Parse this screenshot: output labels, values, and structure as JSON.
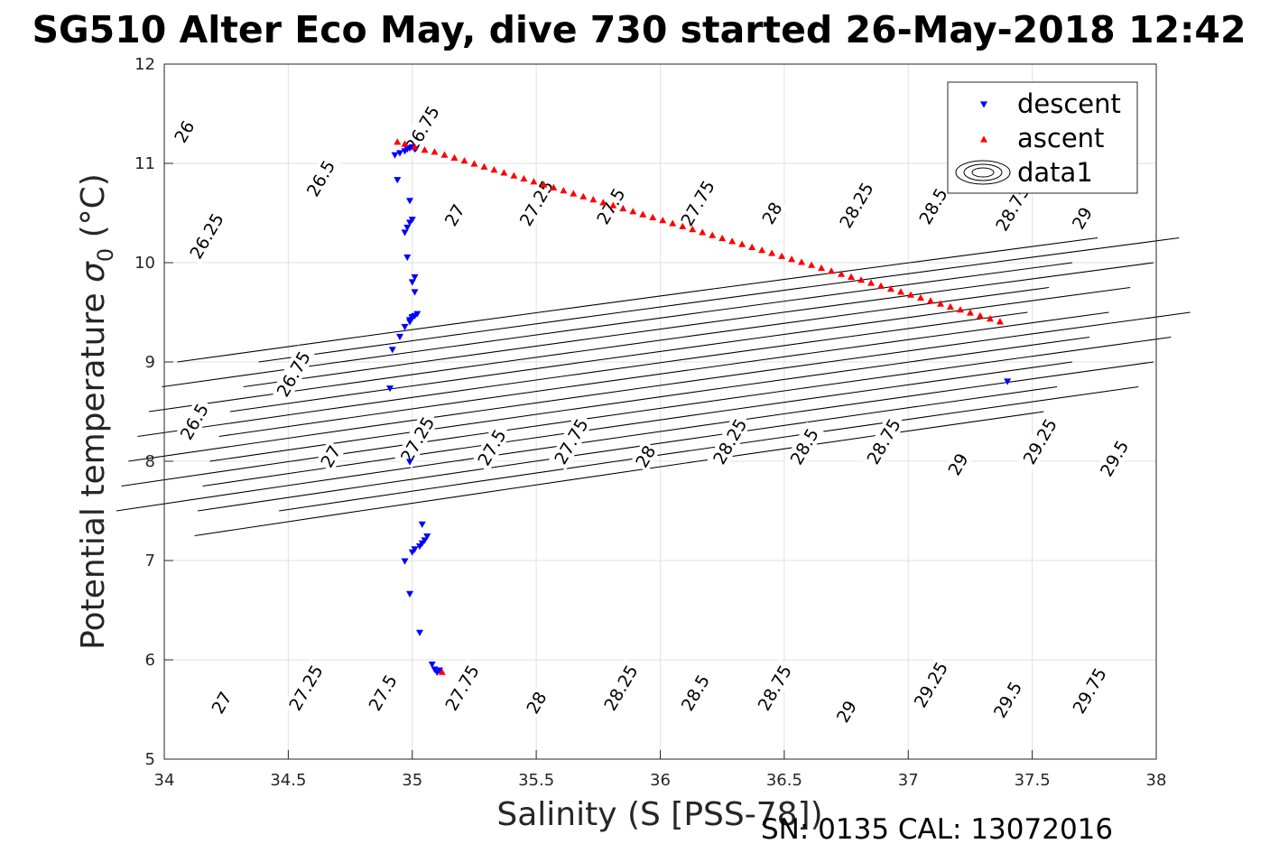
{
  "chart_data": {
    "type": "scatter",
    "title": "SG510 Alter Eco May, dive 730 started 26-May-2018 12:42",
    "xlabel": "Salinity (S [PSS-78])",
    "ylabel_prefix": "Potential temperature ",
    "ylabel_sigma": "σ",
    "ylabel_sub": "0",
    "ylabel_suffix": " (°C)",
    "footer": "SN: 0135  CAL: 13072016",
    "xlim": [
      34,
      38
    ],
    "ylim": [
      5,
      12
    ],
    "xticks": [
      34,
      34.5,
      35,
      35.5,
      36,
      36.5,
      37,
      37.5,
      38
    ],
    "yticks": [
      5,
      6,
      7,
      8,
      9,
      10,
      11,
      12
    ],
    "grid": true,
    "legend_position": "top-right",
    "legend": [
      "descent",
      "ascent",
      "data1"
    ],
    "colors": {
      "descent": "#0000ff",
      "ascent": "#ff0000",
      "contour": "#000000",
      "grid": "#e0e0e0",
      "axis": "#262626"
    },
    "contour_levels": [
      26,
      26.25,
      26.5,
      26.75,
      27,
      27.25,
      27.5,
      27.75,
      28,
      28.25,
      28.5,
      28.75,
      29,
      29.25,
      29.5,
      29.75
    ],
    "contour_labels": [
      {
        "text": "26",
        "x": 34.08,
        "y": 11.32
      },
      {
        "text": "26.5",
        "x": 34.63,
        "y": 10.85
      },
      {
        "text": "26.75",
        "x": 35.04,
        "y": 11.35
      },
      {
        "text": "26.25",
        "x": 34.17,
        "y": 10.27
      },
      {
        "text": "27",
        "x": 35.17,
        "y": 10.48
      },
      {
        "text": "27.25",
        "x": 35.5,
        "y": 10.6
      },
      {
        "text": "27.5",
        "x": 35.8,
        "y": 10.57
      },
      {
        "text": "27.75",
        "x": 36.15,
        "y": 10.6
      },
      {
        "text": "28",
        "x": 36.45,
        "y": 10.5
      },
      {
        "text": "28.25",
        "x": 36.79,
        "y": 10.58
      },
      {
        "text": "28.5",
        "x": 37.1,
        "y": 10.57
      },
      {
        "text": "28.75",
        "x": 37.42,
        "y": 10.55
      },
      {
        "text": "29",
        "x": 37.7,
        "y": 10.45
      },
      {
        "text": "26.5",
        "x": 34.12,
        "y": 8.4
      },
      {
        "text": "26.75",
        "x": 34.52,
        "y": 8.88
      },
      {
        "text": "27",
        "x": 34.67,
        "y": 8.05
      },
      {
        "text": "27.25",
        "x": 35.02,
        "y": 8.22
      },
      {
        "text": "27.5",
        "x": 35.32,
        "y": 8.14
      },
      {
        "text": "27.75",
        "x": 35.64,
        "y": 8.2
      },
      {
        "text": "28",
        "x": 35.94,
        "y": 8.05
      },
      {
        "text": "28.25",
        "x": 36.28,
        "y": 8.2
      },
      {
        "text": "28.5",
        "x": 36.58,
        "y": 8.15
      },
      {
        "text": "28.75",
        "x": 36.9,
        "y": 8.2
      },
      {
        "text": "29",
        "x": 37.2,
        "y": 7.97
      },
      {
        "text": "29.25",
        "x": 37.53,
        "y": 8.2
      },
      {
        "text": "29.5",
        "x": 37.83,
        "y": 8.03
      },
      {
        "text": "27",
        "x": 34.23,
        "y": 5.57
      },
      {
        "text": "27.25",
        "x": 34.57,
        "y": 5.72
      },
      {
        "text": "27.5",
        "x": 34.88,
        "y": 5.67
      },
      {
        "text": "27.75",
        "x": 35.2,
        "y": 5.72
      },
      {
        "text": "28",
        "x": 35.5,
        "y": 5.57
      },
      {
        "text": "28.25",
        "x": 35.84,
        "y": 5.72
      },
      {
        "text": "28.5",
        "x": 36.14,
        "y": 5.67
      },
      {
        "text": "28.75",
        "x": 36.46,
        "y": 5.72
      },
      {
        "text": "29",
        "x": 36.75,
        "y": 5.48
      },
      {
        "text": "29.25",
        "x": 37.09,
        "y": 5.75
      },
      {
        "text": "29.5",
        "x": 37.4,
        "y": 5.6
      },
      {
        "text": "29.75",
        "x": 37.73,
        "y": 5.69
      }
    ],
    "series": [
      {
        "name": "descent",
        "marker": "triangle-down",
        "x": [
          34.93,
          34.95,
          34.97,
          34.98,
          34.99,
          35.0,
          35.01,
          34.94,
          34.99,
          34.97,
          34.98,
          34.99,
          35.0,
          34.98,
          35.0,
          35.01,
          35.01,
          35.0,
          34.99,
          34.97,
          34.99,
          35.0,
          35.01,
          35.02,
          34.95,
          34.92,
          34.91,
          34.99,
          35.04,
          35.06,
          35.05,
          35.04,
          35.03,
          35.01,
          35.0,
          34.97,
          34.99,
          35.03,
          35.08,
          35.09,
          35.1,
          35.11,
          37.4
        ],
        "y": [
          11.08,
          11.1,
          11.12,
          11.14,
          11.15,
          11.16,
          11.14,
          10.83,
          10.62,
          10.3,
          10.35,
          10.4,
          10.43,
          10.05,
          9.8,
          9.85,
          9.7,
          9.45,
          9.42,
          9.35,
          9.4,
          9.44,
          9.46,
          9.48,
          9.25,
          9.12,
          8.73,
          7.99,
          7.36,
          7.24,
          7.2,
          7.17,
          7.14,
          7.11,
          7.08,
          6.99,
          6.66,
          6.27,
          5.95,
          5.9,
          5.87,
          5.89,
          8.8
        ]
      },
      {
        "name": "ascent",
        "marker": "triangle-up",
        "x": [
          34.94,
          34.97,
          35.01,
          35.05,
          35.09,
          35.13,
          35.17,
          35.21,
          35.25,
          35.29,
          35.33,
          35.37,
          35.41,
          35.45,
          35.49,
          35.53,
          35.57,
          35.61,
          35.65,
          35.69,
          35.73,
          35.77,
          35.81,
          35.85,
          35.89,
          35.93,
          35.97,
          36.01,
          36.05,
          36.09,
          36.13,
          36.17,
          36.21,
          36.25,
          36.29,
          36.33,
          36.37,
          36.41,
          36.45,
          36.49,
          36.53,
          36.57,
          36.61,
          36.65,
          36.69,
          36.73,
          36.77,
          36.81,
          36.85,
          36.89,
          36.93,
          36.97,
          37.01,
          37.05,
          37.09,
          37.13,
          37.17,
          37.21,
          37.25,
          37.29,
          37.33,
          37.37,
          35.12
        ],
        "y": [
          11.22,
          11.2,
          11.17,
          11.14,
          11.12,
          11.09,
          11.06,
          11.03,
          11.0,
          10.97,
          10.94,
          10.91,
          10.88,
          10.85,
          10.82,
          10.79,
          10.76,
          10.73,
          10.7,
          10.67,
          10.64,
          10.61,
          10.58,
          10.55,
          10.52,
          10.49,
          10.46,
          10.43,
          10.4,
          10.37,
          10.34,
          10.31,
          10.28,
          10.25,
          10.22,
          10.19,
          10.16,
          10.13,
          10.1,
          10.07,
          10.04,
          10.01,
          9.98,
          9.95,
          9.92,
          9.89,
          9.86,
          9.83,
          9.8,
          9.77,
          9.74,
          9.71,
          9.68,
          9.65,
          9.62,
          9.59,
          9.56,
          9.53,
          9.5,
          9.47,
          9.44,
          9.41,
          5.88
        ]
      }
    ]
  }
}
